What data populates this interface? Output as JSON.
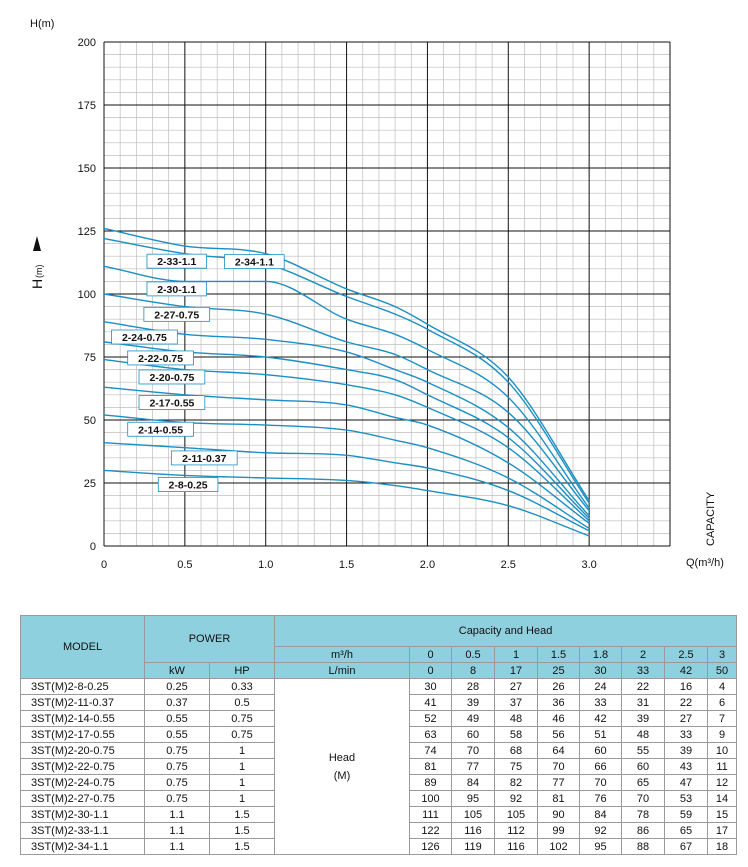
{
  "chart_data": {
    "type": "line",
    "title": "",
    "xlabel": "Q(m³/h)",
    "ylabel": "H(m)",
    "y_axis_side_label": "H",
    "y_axis_side_unit": "(m)",
    "x_axis_side_label": "CAPACITY",
    "xlim": [
      0,
      3.5
    ],
    "ylim": [
      0,
      200
    ],
    "x_ticks": [
      "0",
      "0.5",
      "1.0",
      "1.5",
      "2.0",
      "2.5",
      "3.0"
    ],
    "y_ticks": [
      "0",
      "25",
      "50",
      "75",
      "100",
      "125",
      "150",
      "175",
      "200"
    ],
    "grid": true,
    "x": [
      0,
      0.5,
      1.0,
      1.5,
      1.8,
      2.0,
      2.5,
      3.0
    ],
    "series": [
      {
        "name": "2-8-0.25",
        "values": [
          30,
          28,
          27,
          26,
          24,
          22,
          16,
          4
        ]
      },
      {
        "name": "2-11-0.37",
        "values": [
          41,
          39,
          37,
          36,
          33,
          31,
          22,
          6
        ]
      },
      {
        "name": "2-14-0.55",
        "values": [
          52,
          49,
          48,
          46,
          42,
          39,
          27,
          7
        ]
      },
      {
        "name": "2-17-0.55",
        "values": [
          63,
          60,
          58,
          56,
          51,
          48,
          33,
          9
        ]
      },
      {
        "name": "2-20-0.75",
        "values": [
          74,
          70,
          68,
          64,
          60,
          55,
          39,
          10
        ]
      },
      {
        "name": "2-22-0.75",
        "values": [
          81,
          77,
          75,
          70,
          66,
          60,
          43,
          11
        ]
      },
      {
        "name": "2-24-0.75",
        "values": [
          89,
          84,
          82,
          77,
          70,
          65,
          47,
          12
        ]
      },
      {
        "name": "2-27-0.75",
        "values": [
          100,
          95,
          92,
          81,
          76,
          70,
          53,
          14
        ]
      },
      {
        "name": "2-30-1.1",
        "values": [
          111,
          105,
          105,
          90,
          84,
          78,
          59,
          15
        ]
      },
      {
        "name": "2-33-1.1",
        "values": [
          122,
          116,
          112,
          99,
          92,
          86,
          65,
          17
        ]
      },
      {
        "name": "2-34-1.1",
        "values": [
          126,
          119,
          116,
          102,
          95,
          88,
          67,
          18
        ]
      }
    ],
    "line_color": "#1a8fc4"
  },
  "table": {
    "model_header": "MODEL",
    "power_header": "POWER",
    "kw_header": "kW",
    "hp_header": "HP",
    "capacity_header": "Capacity and Head",
    "m3h_label": "m³/h",
    "lmin_label": "L/min",
    "m3h_values": [
      "0",
      "0.5",
      "1",
      "1.5",
      "1.8",
      "2",
      "2.5",
      "3"
    ],
    "lmin_values": [
      "0",
      "8",
      "17",
      "25",
      "30",
      "33",
      "42",
      "50"
    ],
    "head_label": "Head",
    "head_unit": "(M)",
    "rows": [
      {
        "model": "3ST(M)2-8-0.25",
        "kw": "0.25",
        "hp": "0.33",
        "heads": [
          "30",
          "28",
          "27",
          "26",
          "24",
          "22",
          "16",
          "4"
        ]
      },
      {
        "model": "3ST(M)2-11-0.37",
        "kw": "0.37",
        "hp": "0.5",
        "heads": [
          "41",
          "39",
          "37",
          "36",
          "33",
          "31",
          "22",
          "6"
        ]
      },
      {
        "model": "3ST(M)2-14-0.55",
        "kw": "0.55",
        "hp": "0.75",
        "heads": [
          "52",
          "49",
          "48",
          "46",
          "42",
          "39",
          "27",
          "7"
        ]
      },
      {
        "model": "3ST(M)2-17-0.55",
        "kw": "0.55",
        "hp": "0.75",
        "heads": [
          "63",
          "60",
          "58",
          "56",
          "51",
          "48",
          "33",
          "9"
        ]
      },
      {
        "model": "3ST(M)2-20-0.75",
        "kw": "0.75",
        "hp": "1",
        "heads": [
          "74",
          "70",
          "68",
          "64",
          "60",
          "55",
          "39",
          "10"
        ]
      },
      {
        "model": "3ST(M)2-22-0.75",
        "kw": "0.75",
        "hp": "1",
        "heads": [
          "81",
          "77",
          "75",
          "70",
          "66",
          "60",
          "43",
          "11"
        ]
      },
      {
        "model": "3ST(M)2-24-0.75",
        "kw": "0.75",
        "hp": "1",
        "heads": [
          "89",
          "84",
          "82",
          "77",
          "70",
          "65",
          "47",
          "12"
        ]
      },
      {
        "model": "3ST(M)2-27-0.75",
        "kw": "0.75",
        "hp": "1",
        "heads": [
          "100",
          "95",
          "92",
          "81",
          "76",
          "70",
          "53",
          "14"
        ]
      },
      {
        "model": "3ST(M)2-30-1.1",
        "kw": "1.1",
        "hp": "1.5",
        "heads": [
          "111",
          "105",
          "105",
          "90",
          "84",
          "78",
          "59",
          "15"
        ]
      },
      {
        "model": "3ST(M)2-33-1.1",
        "kw": "1.1",
        "hp": "1.5",
        "heads": [
          "122",
          "116",
          "112",
          "99",
          "92",
          "86",
          "65",
          "17"
        ]
      },
      {
        "model": "3ST(M)2-34-1.1",
        "kw": "1.1",
        "hp": "1.5",
        "heads": [
          "126",
          "119",
          "116",
          "102",
          "95",
          "88",
          "67",
          "18"
        ]
      }
    ]
  }
}
